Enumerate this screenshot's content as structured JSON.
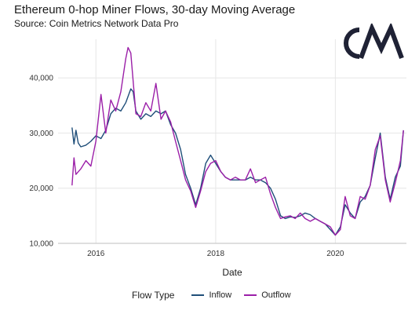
{
  "header": {
    "title": "Ethereum 0-hop Miner Flows, 30-day Moving Average",
    "subtitle": "Source: Coin Metrics Network Data Pro"
  },
  "logo": {
    "name": "coin-metrics-logo",
    "text": "CM",
    "color": "#1f2235"
  },
  "legend": {
    "title": "Flow Type",
    "items": [
      {
        "label": "Inflow",
        "color": "#1f4e79"
      },
      {
        "label": "Outflow",
        "color": "#9b1fa8"
      }
    ]
  },
  "chart_data": {
    "type": "line",
    "title": "Ethereum 0-hop Miner Flows, 30-day Moving Average",
    "subtitle": "Source: Coin Metrics Network Data Pro",
    "xlabel": "Date",
    "ylabel": "",
    "x_type": "date",
    "xlim": [
      "2015-05-15",
      "2021-03-10"
    ],
    "ylim": [
      10000,
      47000
    ],
    "x_ticks": [
      {
        "value": "2016-01-01",
        "label": "2016"
      },
      {
        "value": "2018-01-01",
        "label": "2018"
      },
      {
        "value": "2020-01-01",
        "label": "2020"
      }
    ],
    "y_ticks": [
      {
        "value": 10000,
        "label": "10,000"
      },
      {
        "value": 20000,
        "label": "20,000"
      },
      {
        "value": 30000,
        "label": "30,000"
      },
      {
        "value": 40000,
        "label": "40,000"
      }
    ],
    "grid": true,
    "legend_position": "bottom",
    "series": [
      {
        "name": "Inflow",
        "color": "#1f4e79",
        "points": [
          [
            "2015-08-08",
            31000
          ],
          [
            "2015-08-20",
            28000
          ],
          [
            "2015-09-01",
            30500
          ],
          [
            "2015-09-15",
            28200
          ],
          [
            "2015-10-01",
            27500
          ],
          [
            "2015-11-01",
            27800
          ],
          [
            "2015-12-01",
            28500
          ],
          [
            "2016-01-01",
            29500
          ],
          [
            "2016-02-01",
            29000
          ],
          [
            "2016-03-01",
            30500
          ],
          [
            "2016-04-01",
            33500
          ],
          [
            "2016-05-01",
            34500
          ],
          [
            "2016-06-01",
            34000
          ],
          [
            "2016-07-01",
            35500
          ],
          [
            "2016-08-01",
            38000
          ],
          [
            "2016-08-15",
            37500
          ],
          [
            "2016-09-01",
            34000
          ],
          [
            "2016-10-01",
            32500
          ],
          [
            "2016-11-01",
            33500
          ],
          [
            "2016-12-01",
            33000
          ],
          [
            "2017-01-01",
            34000
          ],
          [
            "2017-02-01",
            33500
          ],
          [
            "2017-03-01",
            34000
          ],
          [
            "2017-04-01",
            31500
          ],
          [
            "2017-05-01",
            30000
          ],
          [
            "2017-06-01",
            27000
          ],
          [
            "2017-07-01",
            22500
          ],
          [
            "2017-08-01",
            20000
          ],
          [
            "2017-09-01",
            17000
          ],
          [
            "2017-10-01",
            20000
          ],
          [
            "2017-11-01",
            24500
          ],
          [
            "2017-12-01",
            26000
          ],
          [
            "2018-01-01",
            24500
          ],
          [
            "2018-02-01",
            23000
          ],
          [
            "2018-03-01",
            22000
          ],
          [
            "2018-04-01",
            21500
          ],
          [
            "2018-05-01",
            21500
          ],
          [
            "2018-06-01",
            21500
          ],
          [
            "2018-07-01",
            21500
          ],
          [
            "2018-08-01",
            22000
          ],
          [
            "2018-09-01",
            21500
          ],
          [
            "2018-10-01",
            21500
          ],
          [
            "2018-11-01",
            21000
          ],
          [
            "2018-12-01",
            20000
          ],
          [
            "2019-01-01",
            18000
          ],
          [
            "2019-02-01",
            15000
          ],
          [
            "2019-03-01",
            14500
          ],
          [
            "2019-04-01",
            14800
          ],
          [
            "2019-05-01",
            14700
          ],
          [
            "2019-06-01",
            15000
          ],
          [
            "2019-07-01",
            15500
          ],
          [
            "2019-08-01",
            15200
          ],
          [
            "2019-09-01",
            14500
          ],
          [
            "2019-10-01",
            14000
          ],
          [
            "2019-11-01",
            13500
          ],
          [
            "2019-12-01",
            12500
          ],
          [
            "2020-01-01",
            11500
          ],
          [
            "2020-02-01",
            13000
          ],
          [
            "2020-03-01",
            17000
          ],
          [
            "2020-04-01",
            15500
          ],
          [
            "2020-05-01",
            14500
          ],
          [
            "2020-06-01",
            17500
          ],
          [
            "2020-07-01",
            18500
          ],
          [
            "2020-08-01",
            20500
          ],
          [
            "2020-09-01",
            25500
          ],
          [
            "2020-10-01",
            30000
          ],
          [
            "2020-11-01",
            22000
          ],
          [
            "2020-12-01",
            18000
          ],
          [
            "2021-01-01",
            22000
          ],
          [
            "2021-02-01",
            24000
          ],
          [
            "2021-02-20",
            30500
          ]
        ]
      },
      {
        "name": "Outflow",
        "color": "#9b1fa8",
        "points": [
          [
            "2015-08-08",
            20500
          ],
          [
            "2015-08-20",
            25500
          ],
          [
            "2015-09-01",
            22500
          ],
          [
            "2015-10-01",
            23500
          ],
          [
            "2015-11-01",
            25000
          ],
          [
            "2015-12-01",
            24000
          ],
          [
            "2016-01-01",
            28500
          ],
          [
            "2016-02-01",
            37000
          ],
          [
            "2016-03-01",
            30000
          ],
          [
            "2016-04-01",
            36000
          ],
          [
            "2016-05-01",
            34000
          ],
          [
            "2016-06-01",
            37500
          ],
          [
            "2016-07-01",
            43500
          ],
          [
            "2016-07-15",
            45500
          ],
          [
            "2016-08-01",
            44500
          ],
          [
            "2016-09-01",
            33500
          ],
          [
            "2016-10-01",
            33000
          ],
          [
            "2016-11-01",
            35500
          ],
          [
            "2016-12-01",
            34000
          ],
          [
            "2017-01-01",
            39000
          ],
          [
            "2017-02-01",
            32500
          ],
          [
            "2017-03-01",
            34000
          ],
          [
            "2017-04-01",
            32000
          ],
          [
            "2017-05-01",
            28500
          ],
          [
            "2017-06-01",
            25000
          ],
          [
            "2017-07-01",
            21500
          ],
          [
            "2017-08-01",
            19500
          ],
          [
            "2017-09-01",
            16500
          ],
          [
            "2017-10-01",
            19500
          ],
          [
            "2017-11-01",
            23000
          ],
          [
            "2017-12-01",
            24500
          ],
          [
            "2018-01-01",
            25000
          ],
          [
            "2018-02-01",
            23000
          ],
          [
            "2018-03-01",
            22000
          ],
          [
            "2018-04-01",
            21500
          ],
          [
            "2018-05-01",
            22000
          ],
          [
            "2018-06-01",
            21500
          ],
          [
            "2018-07-01",
            21500
          ],
          [
            "2018-08-01",
            23500
          ],
          [
            "2018-09-01",
            21000
          ],
          [
            "2018-10-01",
            21500
          ],
          [
            "2018-11-01",
            22000
          ],
          [
            "2018-12-01",
            19000
          ],
          [
            "2019-01-01",
            16500
          ],
          [
            "2019-02-01",
            14500
          ],
          [
            "2019-03-01",
            14800
          ],
          [
            "2019-04-01",
            15000
          ],
          [
            "2019-05-01",
            14500
          ],
          [
            "2019-06-01",
            15500
          ],
          [
            "2019-07-01",
            14500
          ],
          [
            "2019-08-01",
            14000
          ],
          [
            "2019-09-01",
            14500
          ],
          [
            "2019-10-01",
            14000
          ],
          [
            "2019-11-01",
            13500
          ],
          [
            "2019-12-01",
            13000
          ],
          [
            "2020-01-01",
            11500
          ],
          [
            "2020-02-01",
            12500
          ],
          [
            "2020-03-01",
            18500
          ],
          [
            "2020-04-01",
            15000
          ],
          [
            "2020-05-01",
            14500
          ],
          [
            "2020-06-01",
            18500
          ],
          [
            "2020-07-01",
            18000
          ],
          [
            "2020-08-01",
            20500
          ],
          [
            "2020-09-01",
            27000
          ],
          [
            "2020-10-01",
            29500
          ],
          [
            "2020-11-01",
            21500
          ],
          [
            "2020-12-01",
            17500
          ],
          [
            "2021-01-01",
            21000
          ],
          [
            "2021-02-01",
            25000
          ],
          [
            "2021-02-20",
            30500
          ]
        ]
      }
    ]
  }
}
